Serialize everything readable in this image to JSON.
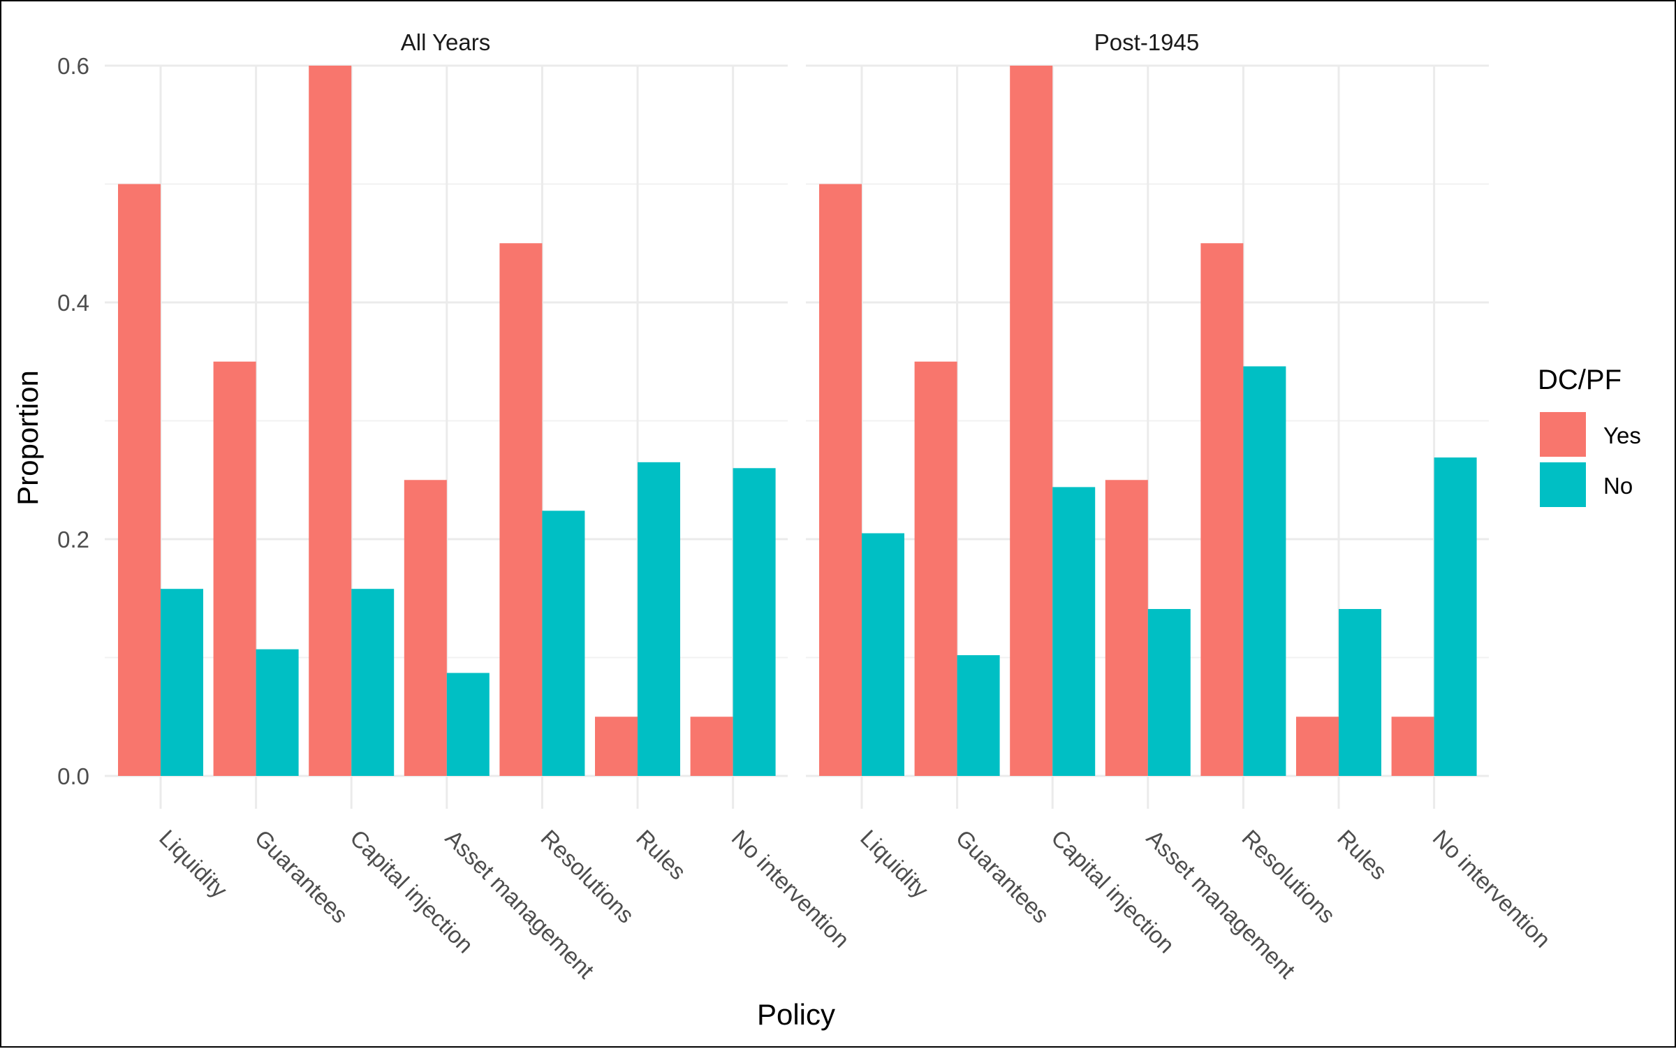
{
  "chart_data": {
    "type": "bar",
    "xlabel": "Policy",
    "ylabel": "Proportion",
    "ylim": [
      0,
      0.62
    ],
    "yticks": [
      "0.0",
      "0.2",
      "0.4",
      "0.6"
    ],
    "grid": true,
    "legend": {
      "title": "DC/PF",
      "position": "right",
      "entries": [
        "Yes",
        "No"
      ]
    },
    "categories": [
      "Liquidity",
      "Guarantees",
      "Capital injection",
      "Asset management",
      "Resolutions",
      "Rules",
      "No intervention"
    ],
    "colors": {
      "Yes": "#F8766D",
      "No": "#00BFC4"
    },
    "facets": [
      {
        "title": "All Years",
        "series": [
          {
            "name": "Yes",
            "values": [
              0.5,
              0.35,
              0.6,
              0.25,
              0.45,
              0.05,
              0.05
            ]
          },
          {
            "name": "No",
            "values": [
              0.158,
              0.107,
              0.158,
              0.087,
              0.224,
              0.265,
              0.26
            ]
          }
        ]
      },
      {
        "title": "Post-1945",
        "series": [
          {
            "name": "Yes",
            "values": [
              0.5,
              0.35,
              0.6,
              0.25,
              0.45,
              0.05,
              0.05
            ]
          },
          {
            "name": "No",
            "values": [
              0.205,
              0.102,
              0.244,
              0.141,
              0.346,
              0.141,
              0.269
            ]
          }
        ]
      }
    ]
  }
}
